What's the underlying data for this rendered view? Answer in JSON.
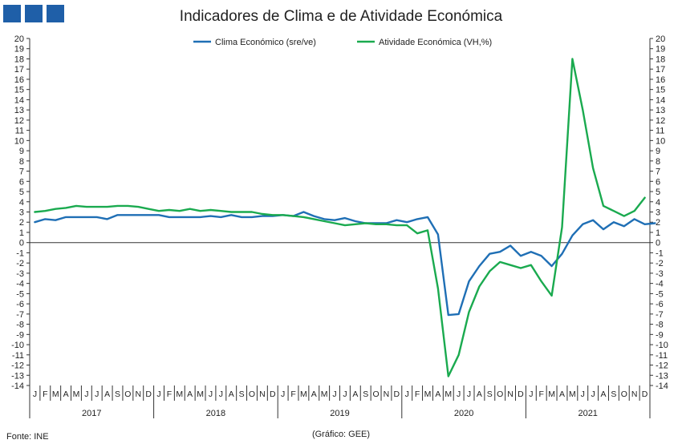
{
  "header": {
    "title": "Indicadores de Clima e de Atividade Económica",
    "logo_icon": "three-blue-squares-logo",
    "logo_color": "#1f5fa8"
  },
  "footer": {
    "source": "Fonte: INE",
    "credit": "(Gráfico: GEE)"
  },
  "chart_data": {
    "type": "line",
    "title": "Indicadores de Clima e de Atividade Económica",
    "xlabel": "",
    "ylabel": "",
    "ylim": [
      -14,
      20
    ],
    "y_ticks": [
      20,
      19,
      18,
      17,
      16,
      15,
      14,
      13,
      12,
      11,
      10,
      9,
      8,
      7,
      6,
      5,
      4,
      3,
      2,
      1,
      0,
      -1,
      -2,
      -3,
      -4,
      -5,
      -6,
      -7,
      -8,
      -9,
      -10,
      -11,
      -12,
      -13,
      -14
    ],
    "dual_axis": true,
    "grid": false,
    "legend_position": "top-center",
    "month_labels": [
      "J",
      "F",
      "M",
      "A",
      "M",
      "J",
      "J",
      "A",
      "S",
      "O",
      "N",
      "D"
    ],
    "years": [
      "2017",
      "2018",
      "2019",
      "2020",
      "2021"
    ],
    "series": [
      {
        "name": "Clima Económico (sre/ve)",
        "color": "#1f6fb5",
        "values": [
          2.0,
          2.3,
          2.2,
          2.5,
          2.5,
          2.5,
          2.5,
          2.3,
          2.7,
          2.7,
          2.7,
          2.7,
          2.7,
          2.5,
          2.5,
          2.5,
          2.5,
          2.6,
          2.5,
          2.7,
          2.5,
          2.5,
          2.6,
          2.6,
          2.7,
          2.6,
          3.0,
          2.6,
          2.3,
          2.2,
          2.4,
          2.1,
          1.9,
          1.9,
          1.9,
          2.2,
          2.0,
          2.3,
          2.5,
          0.8,
          -7.1,
          -7.0,
          -3.8,
          -2.3,
          -1.1,
          -0.9,
          -0.3,
          -1.3,
          -0.9,
          -1.3,
          -2.3,
          -1.1,
          0.7,
          1.8,
          2.2,
          1.3,
          2.0,
          1.6,
          2.3,
          1.8,
          1.9
        ]
      },
      {
        "name": "Atividade Económica (VH,%)",
        "color": "#1aaa4f",
        "values": [
          3.0,
          3.1,
          3.3,
          3.4,
          3.6,
          3.5,
          3.5,
          3.5,
          3.6,
          3.6,
          3.5,
          3.3,
          3.1,
          3.2,
          3.1,
          3.3,
          3.1,
          3.2,
          3.1,
          3.0,
          3.0,
          3.0,
          2.8,
          2.7,
          2.7,
          2.6,
          2.5,
          2.3,
          2.1,
          1.9,
          1.7,
          1.8,
          1.9,
          1.8,
          1.8,
          1.7,
          1.7,
          0.9,
          1.2,
          -4.5,
          -13.1,
          -11.0,
          -6.8,
          -4.3,
          -2.8,
          -1.9,
          -2.2,
          -2.5,
          -2.2,
          -3.8,
          -5.2,
          1.5,
          18.0,
          13.0,
          7.3,
          3.6,
          3.1,
          2.6,
          3.1,
          4.4
        ]
      }
    ]
  }
}
